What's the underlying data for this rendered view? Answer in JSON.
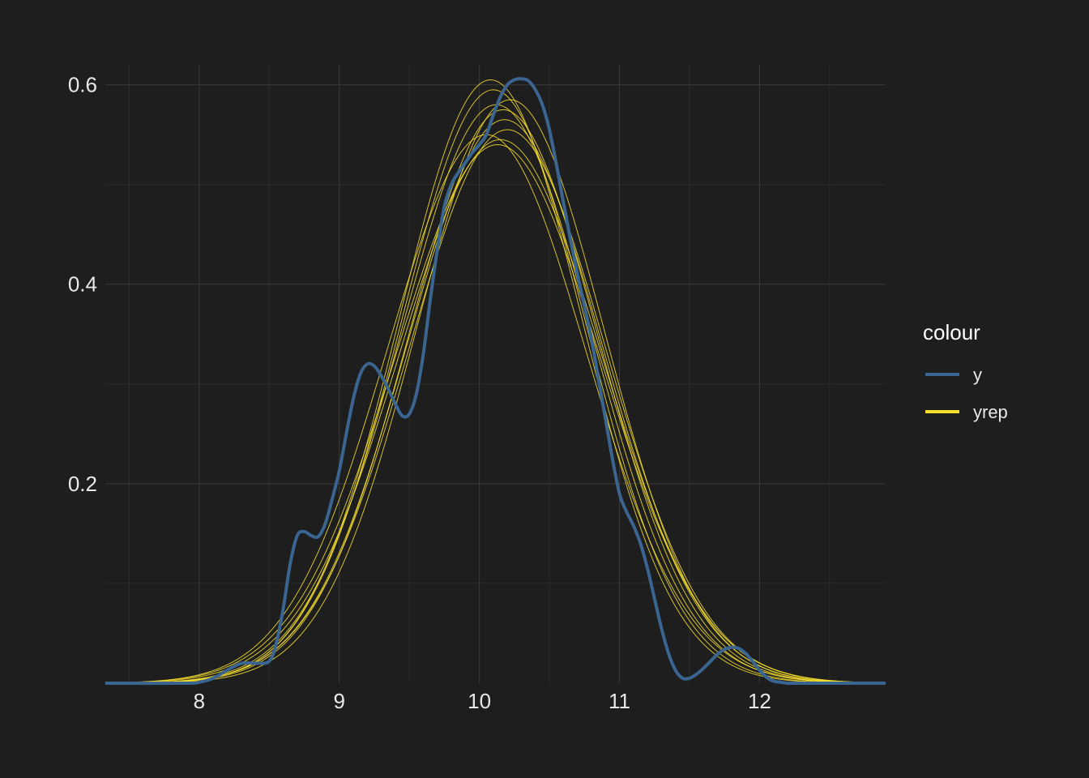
{
  "chart_data": {
    "type": "line",
    "title": "",
    "xlabel": "",
    "ylabel": "",
    "xlim": [
      7.33,
      12.9
    ],
    "ylim": [
      0,
      0.62
    ],
    "x_ticks": [
      8,
      9,
      10,
      11,
      12
    ],
    "x_tick_labels": [
      "8",
      "9",
      "10",
      "11",
      "12"
    ],
    "y_ticks": [
      0.2,
      0.4,
      0.6
    ],
    "y_tick_labels": [
      "0.2",
      "0.4",
      "0.6"
    ],
    "grid": true,
    "background_color": "#1e1e1e",
    "grid_color": "#3a3a3a",
    "legend": {
      "title": "colour",
      "position": "right",
      "entries": [
        {
          "label": "y",
          "color": "#3a6591"
        },
        {
          "label": "yrep",
          "color": "#f5dd2b"
        }
      ]
    },
    "series": [
      {
        "name": "y",
        "color": "#3a6591",
        "x": [
          7.33,
          7.9,
          8.0,
          8.1,
          8.2,
          8.3,
          8.4,
          8.5,
          8.55,
          8.6,
          8.65,
          8.7,
          8.75,
          8.8,
          8.85,
          8.9,
          8.95,
          9.0,
          9.05,
          9.1,
          9.15,
          9.2,
          9.25,
          9.3,
          9.35,
          9.4,
          9.45,
          9.5,
          9.55,
          9.6,
          9.65,
          9.7,
          9.75,
          9.8,
          9.85,
          9.9,
          9.95,
          10.0,
          10.05,
          10.1,
          10.15,
          10.2,
          10.25,
          10.3,
          10.35,
          10.4,
          10.45,
          10.5,
          10.55,
          10.6,
          10.65,
          10.7,
          10.75,
          10.8,
          10.85,
          10.9,
          10.95,
          11.0,
          11.05,
          11.1,
          11.15,
          11.2,
          11.25,
          11.3,
          11.35,
          11.4,
          11.45,
          11.5,
          11.55,
          11.6,
          11.65,
          11.7,
          11.75,
          11.8,
          11.85,
          11.9,
          11.95,
          12.0,
          12.05,
          12.1,
          12.15,
          12.2,
          12.3,
          12.9
        ],
        "values": [
          0,
          0,
          0.001,
          0.005,
          0.013,
          0.02,
          0.02,
          0.022,
          0.04,
          0.075,
          0.12,
          0.148,
          0.152,
          0.148,
          0.147,
          0.16,
          0.185,
          0.213,
          0.25,
          0.285,
          0.31,
          0.32,
          0.318,
          0.308,
          0.295,
          0.28,
          0.268,
          0.27,
          0.29,
          0.33,
          0.385,
          0.435,
          0.478,
          0.5,
          0.512,
          0.522,
          0.532,
          0.54,
          0.55,
          0.57,
          0.588,
          0.6,
          0.605,
          0.606,
          0.604,
          0.595,
          0.58,
          0.555,
          0.52,
          0.482,
          0.445,
          0.41,
          0.378,
          0.345,
          0.305,
          0.265,
          0.225,
          0.19,
          0.172,
          0.158,
          0.14,
          0.115,
          0.085,
          0.055,
          0.03,
          0.013,
          0.005,
          0.005,
          0.009,
          0.015,
          0.022,
          0.029,
          0.034,
          0.036,
          0.035,
          0.03,
          0.022,
          0.013,
          0.006,
          0.002,
          0.001,
          0,
          0,
          0
        ]
      },
      {
        "name": "yrep",
        "color": "#f5dd2b",
        "mu": 10.12,
        "sigma": 0.68,
        "peak": 0.58
      },
      {
        "name": "yrep",
        "color": "#f5dd2b",
        "mu": 10.2,
        "sigma": 0.7,
        "peak": 0.555
      },
      {
        "name": "yrep",
        "color": "#f5dd2b",
        "mu": 10.08,
        "sigma": 0.65,
        "peak": 0.605
      },
      {
        "name": "yrep",
        "color": "#f5dd2b",
        "mu": 10.15,
        "sigma": 0.72,
        "peak": 0.545
      },
      {
        "name": "yrep",
        "color": "#f5dd2b",
        "mu": 10.1,
        "sigma": 0.66,
        "peak": 0.595
      },
      {
        "name": "yrep",
        "color": "#f5dd2b",
        "mu": 10.18,
        "sigma": 0.69,
        "peak": 0.565
      },
      {
        "name": "yrep",
        "color": "#f5dd2b",
        "mu": 10.05,
        "sigma": 0.71,
        "peak": 0.55
      },
      {
        "name": "yrep",
        "color": "#f5dd2b",
        "mu": 10.22,
        "sigma": 0.67,
        "peak": 0.585
      },
      {
        "name": "yrep",
        "color": "#f5dd2b",
        "mu": 10.13,
        "sigma": 0.73,
        "peak": 0.54
      },
      {
        "name": "yrep",
        "color": "#f5dd2b",
        "mu": 10.17,
        "sigma": 0.675,
        "peak": 0.575
      }
    ]
  }
}
